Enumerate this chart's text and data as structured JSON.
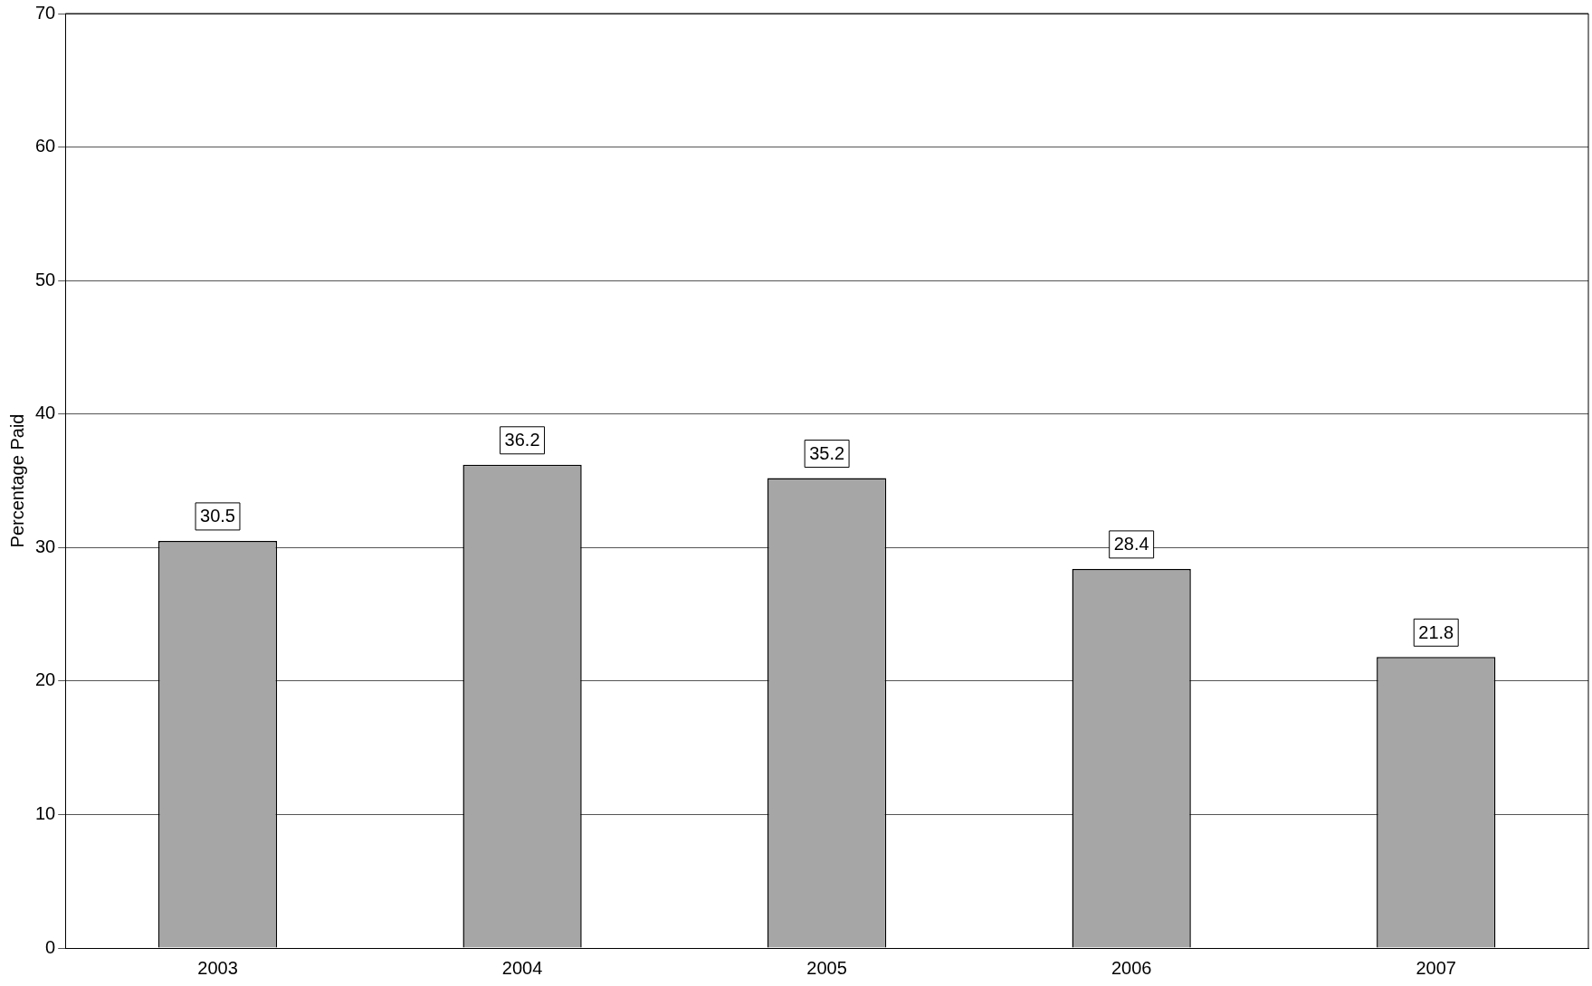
{
  "chart_data": {
    "type": "bar",
    "ylabel": "Percentage Paid",
    "categories": [
      "2003",
      "2004",
      "2005",
      "2006",
      "2007"
    ],
    "values": [
      30.5,
      36.2,
      35.2,
      28.4,
      21.8
    ],
    "color": "#a6a6a6",
    "ylim": [
      0,
      70
    ],
    "yticks": [
      0,
      10,
      20,
      30,
      40,
      50,
      60,
      70
    ],
    "grid": "y",
    "legend": false,
    "data_labels": true
  }
}
